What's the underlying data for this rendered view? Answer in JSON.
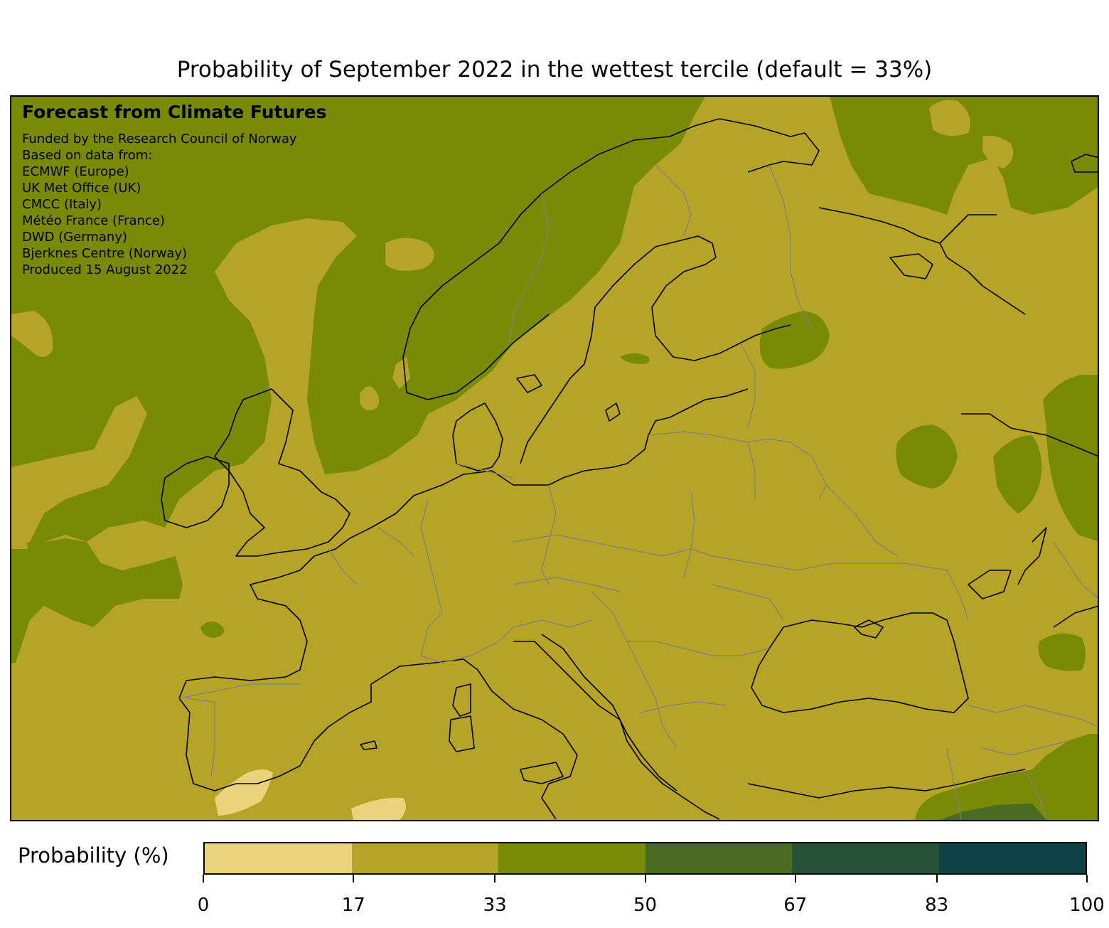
{
  "title": "Probability of September 2022 in the wettest tercile (default = 33%)",
  "credits": {
    "heading": "Forecast from Climate Futures",
    "lines": [
      "Funded by the Research Council of Norway",
      "Based on data from:",
      "ECMWF (Europe)",
      "UK Met Office (UK)",
      "CMCC (Italy)",
      "Météo France (France)",
      "DWD (Germany)",
      "Bjerknes Centre (Norway)",
      "Produced 15 August 2022"
    ]
  },
  "colorbar": {
    "label": "Probability (%)",
    "ticks": [
      "0",
      "17",
      "33",
      "50",
      "67",
      "83",
      "100"
    ],
    "tick_values": [
      0,
      17,
      33,
      50,
      67,
      83,
      100
    ],
    "colors": [
      "#ecd27a",
      "#b6a428",
      "#798b06",
      "#4a6c22",
      "#265337",
      "#0e4346"
    ]
  },
  "map": {
    "colors": {
      "bin_0_17": "#ecd27a",
      "bin_17_33": "#b6a428",
      "bin_33_50": "#798b06",
      "bin_50_67": "#4a6c22",
      "coastline": "#000000",
      "borders": "#808080"
    }
  }
}
